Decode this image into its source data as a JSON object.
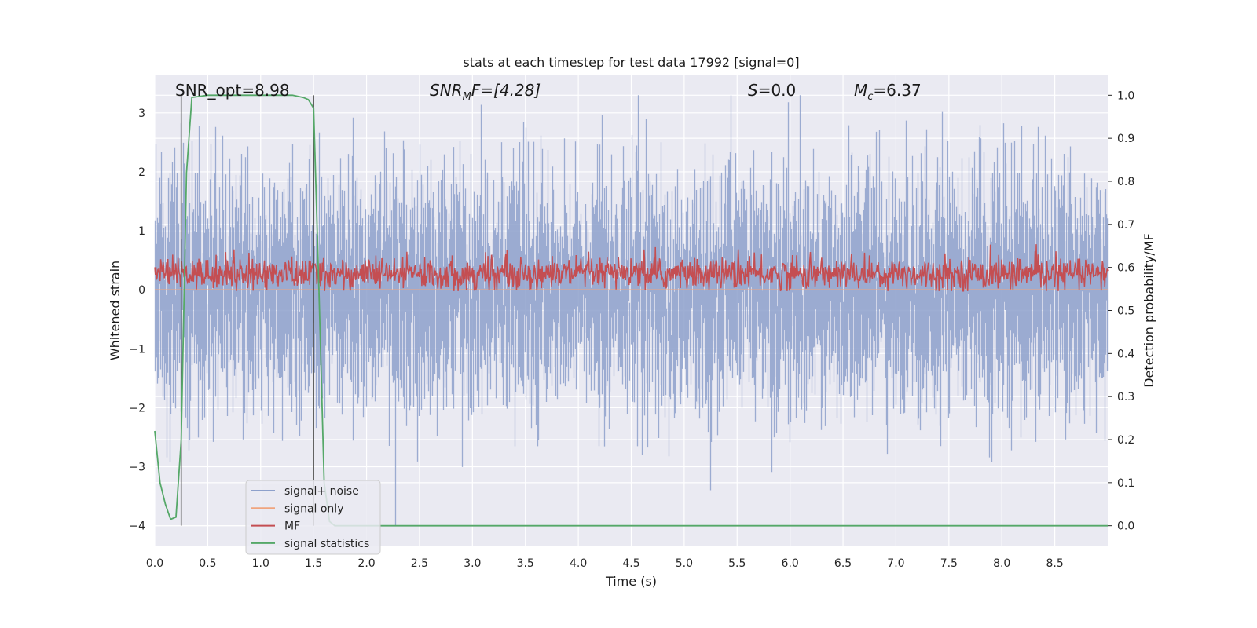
{
  "chart_data": {
    "type": "line",
    "title": "stats at each timestep for test data 17992 [signal=0]",
    "xlabel": "Time (s)",
    "ylabel": "Whitened strain",
    "ylabel_right": "Detection probability/MF",
    "xlim": [
      0.0,
      9.0
    ],
    "ylim": [
      -4.35,
      3.65
    ],
    "ylim_right": [
      -0.048,
      1.048
    ],
    "x_ticks": [
      "0.0",
      "0.5",
      "1.0",
      "1.5",
      "2.0",
      "2.5",
      "3.0",
      "3.5",
      "4.0",
      "4.5",
      "5.0",
      "5.5",
      "6.0",
      "6.5",
      "7.0",
      "7.5",
      "8.0",
      "8.5"
    ],
    "y_ticks": [
      "3",
      "2",
      "1",
      "0",
      "−1",
      "−2",
      "−3",
      "−4"
    ],
    "y_ticks_right": [
      "1.0",
      "0.9",
      "0.8",
      "0.7",
      "0.6",
      "0.5",
      "0.4",
      "0.3",
      "0.2",
      "0.1",
      "0.0"
    ],
    "grid": true,
    "legend": {
      "position": "lower-left",
      "entries": [
        {
          "label": "signal+ noise",
          "color": "#8da0cb"
        },
        {
          "label": "signal only",
          "color": "#f0a47e"
        },
        {
          "label": "MF",
          "color": "#c44e52"
        },
        {
          "label": "signal statistics",
          "color": "#55a868"
        }
      ]
    },
    "annotations": {
      "snr_opt": "SNR_opt=8.98",
      "snr_mf_symbol": "SNR",
      "snr_mf_sub": "M",
      "snr_mf_rest": "F=[4.28]",
      "s_symbol": "S",
      "s_rest": "=0.0",
      "mc_symbol": "M",
      "mc_sub": "c",
      "mc_rest": "=6.37"
    },
    "vertical_markers_s": [
      0.25,
      1.5
    ],
    "series": [
      {
        "name": "signal+ noise",
        "axis": "left",
        "color": "#8da0cb",
        "description": "whitened strain, approx. Gaussian noise sigma ~1, range about -4 to 3.3",
        "sigma": 1.0,
        "range": [
          -4.0,
          3.3
        ]
      },
      {
        "name": "signal only",
        "axis": "left",
        "color": "#f0a47e",
        "values_note": "zero (no signal injected)",
        "value": 0.0
      },
      {
        "name": "MF",
        "axis": "right",
        "color": "#c44e52",
        "description": "matched filter output, fluctuating between about 0.55 and 0.68",
        "range": [
          0.545,
          0.68
        ]
      },
      {
        "name": "signal statistics",
        "axis": "right",
        "color": "#55a868",
        "x": [
          0.0,
          0.05,
          0.1,
          0.15,
          0.2,
          0.25,
          0.3,
          0.35,
          0.5,
          1.0,
          1.3,
          1.4,
          1.45,
          1.5,
          1.55,
          1.6,
          1.65,
          1.7,
          2.0,
          3.0,
          4.0,
          5.0,
          6.0,
          7.0,
          8.0,
          9.0
        ],
        "values": [
          0.22,
          0.1,
          0.05,
          0.015,
          0.02,
          0.2,
          0.82,
          0.995,
          1.0,
          1.0,
          1.0,
          0.995,
          0.99,
          0.97,
          0.55,
          0.1,
          0.01,
          0.0,
          0.0,
          0.0,
          0.0,
          0.0,
          0.0,
          0.0,
          0.0,
          0.0
        ]
      }
    ]
  }
}
